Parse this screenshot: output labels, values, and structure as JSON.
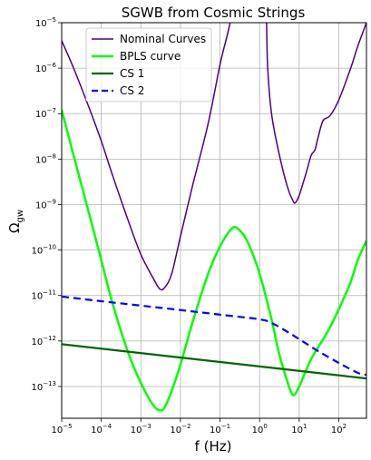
{
  "chart_data": {
    "type": "line",
    "title": "SGWB from Cosmic Strings",
    "xlabel": "f (Hz)",
    "ylabel_main": "Ω",
    "ylabel_sub": "gw",
    "xscale": "log",
    "yscale": "log",
    "xlim": [
      1e-05,
      500
    ],
    "ylim": [
      2e-14,
      1e-05
    ],
    "grid": true,
    "legend_position": "upper-left",
    "x_ticks": [
      {
        "base": "10",
        "exp": "−5",
        "value": 1e-05
      },
      {
        "base": "10",
        "exp": "−4",
        "value": 0.0001
      },
      {
        "base": "10",
        "exp": "−3",
        "value": 0.001
      },
      {
        "base": "10",
        "exp": "−2",
        "value": 0.01
      },
      {
        "base": "10",
        "exp": "−1",
        "value": 0.1
      },
      {
        "base": "10",
        "exp": "0",
        "value": 1
      },
      {
        "base": "10",
        "exp": "1",
        "value": 10
      },
      {
        "base": "10",
        "exp": "2",
        "value": 100
      }
    ],
    "y_ticks": [
      {
        "base": "10",
        "exp": "−13",
        "value": 1e-13
      },
      {
        "base": "10",
        "exp": "−12",
        "value": 1e-12
      },
      {
        "base": "10",
        "exp": "−11",
        "value": 1e-11
      },
      {
        "base": "10",
        "exp": "−10",
        "value": 1e-10
      },
      {
        "base": "10",
        "exp": "−9",
        "value": 1e-09
      },
      {
        "base": "10",
        "exp": "−8",
        "value": 1e-08
      },
      {
        "base": "10",
        "exp": "−7",
        "value": 1e-07
      },
      {
        "base": "10",
        "exp": "−6",
        "value": 1e-06
      },
      {
        "base": "10",
        "exp": "−5",
        "value": 1e-05
      }
    ],
    "series": [
      {
        "name": "Nominal Curves",
        "color": "#4b0082",
        "style": "solid",
        "segments": [
          [
            [
              1e-05,
              4e-06
            ],
            [
              2e-05,
              1e-06
            ],
            [
              5e-05,
              1.3e-07
            ],
            [
              0.0001,
              2.5e-08
            ],
            [
              0.0002,
              4e-09
            ],
            [
              0.0005,
              4e-10
            ],
            [
              0.001,
              8e-11
            ],
            [
              0.002,
              2.5e-11
            ],
            [
              0.003,
              1.4e-11
            ],
            [
              0.004,
              1.5e-11
            ],
            [
              0.006,
              3e-11
            ],
            [
              0.01,
              2e-10
            ],
            [
              0.02,
              2.5e-09
            ],
            [
              0.05,
              6e-08
            ],
            [
              0.1,
              1.2e-06
            ],
            [
              0.15,
              5e-06
            ],
            [
              0.18,
              1e-05
            ]
          ],
          [
            [
              1.5,
              1e-05
            ],
            [
              1.6,
              1e-06
            ],
            [
              2,
              1e-07
            ],
            [
              3,
              1.5e-08
            ],
            [
              5,
              2.5e-09
            ],
            [
              7,
              1.2e-09
            ],
            [
              8,
              1.1e-09
            ],
            [
              10,
              1.6e-09
            ],
            [
              15,
              5e-09
            ],
            [
              20,
              1.2e-08
            ],
            [
              25,
              1.6e-08
            ],
            [
              30,
              3e-08
            ],
            [
              40,
              7e-08
            ],
            [
              60,
              9e-08
            ],
            [
              100,
              2e-07
            ],
            [
              200,
              1e-06
            ],
            [
              300,
              3e-06
            ],
            [
              500,
              1e-05
            ]
          ]
        ]
      },
      {
        "name": "BPLS curve",
        "color": "#00ff00",
        "style": "solid",
        "points": [
          [
            1e-05,
            1.2e-07
          ],
          [
            2e-05,
            1.2e-08
          ],
          [
            5e-05,
            6e-10
          ],
          [
            0.0001,
            6e-11
          ],
          [
            0.0002,
            6e-12
          ],
          [
            0.0005,
            5e-13
          ],
          [
            0.001,
            1.2e-13
          ],
          [
            0.002,
            4e-14
          ],
          [
            0.003,
            3e-14
          ],
          [
            0.004,
            3.5e-14
          ],
          [
            0.006,
            8e-14
          ],
          [
            0.01,
            3e-13
          ],
          [
            0.02,
            2.5e-12
          ],
          [
            0.05,
            3e-11
          ],
          [
            0.1,
            1.2e-10
          ],
          [
            0.2,
            3e-10
          ],
          [
            0.3,
            2.8e-10
          ],
          [
            0.5,
            1.5e-10
          ],
          [
            1,
            3e-11
          ],
          [
            2,
            3e-12
          ],
          [
            3,
            6e-13
          ],
          [
            5,
            1.3e-13
          ],
          [
            7,
            6.5e-14
          ],
          [
            10,
            1e-13
          ],
          [
            20,
            4e-13
          ],
          [
            50,
            1.5e-12
          ],
          [
            100,
            5e-12
          ],
          [
            200,
            2e-11
          ],
          [
            300,
            6e-11
          ],
          [
            500,
            1.6e-10
          ]
        ]
      },
      {
        "name": "CS 1",
        "color": "#006400",
        "style": "solid",
        "points": [
          [
            1e-05,
            8.5e-13
          ],
          [
            500,
            1.5e-13
          ]
        ]
      },
      {
        "name": "CS 2",
        "color": "#0000ff",
        "style": "dashed",
        "points": [
          [
            1e-05,
            9.5e-12
          ],
          [
            0.0001,
            7.5e-12
          ],
          [
            0.001,
            6e-12
          ],
          [
            0.01,
            4.8e-12
          ],
          [
            0.1,
            3.8e-12
          ],
          [
            1,
            3e-12
          ],
          [
            2,
            2.5e-12
          ],
          [
            5,
            1.6e-12
          ],
          [
            10,
            1.1e-12
          ],
          [
            30,
            6e-13
          ],
          [
            100,
            3.3e-13
          ],
          [
            300,
            2e-13
          ],
          [
            500,
            1.8e-13
          ]
        ]
      }
    ]
  }
}
